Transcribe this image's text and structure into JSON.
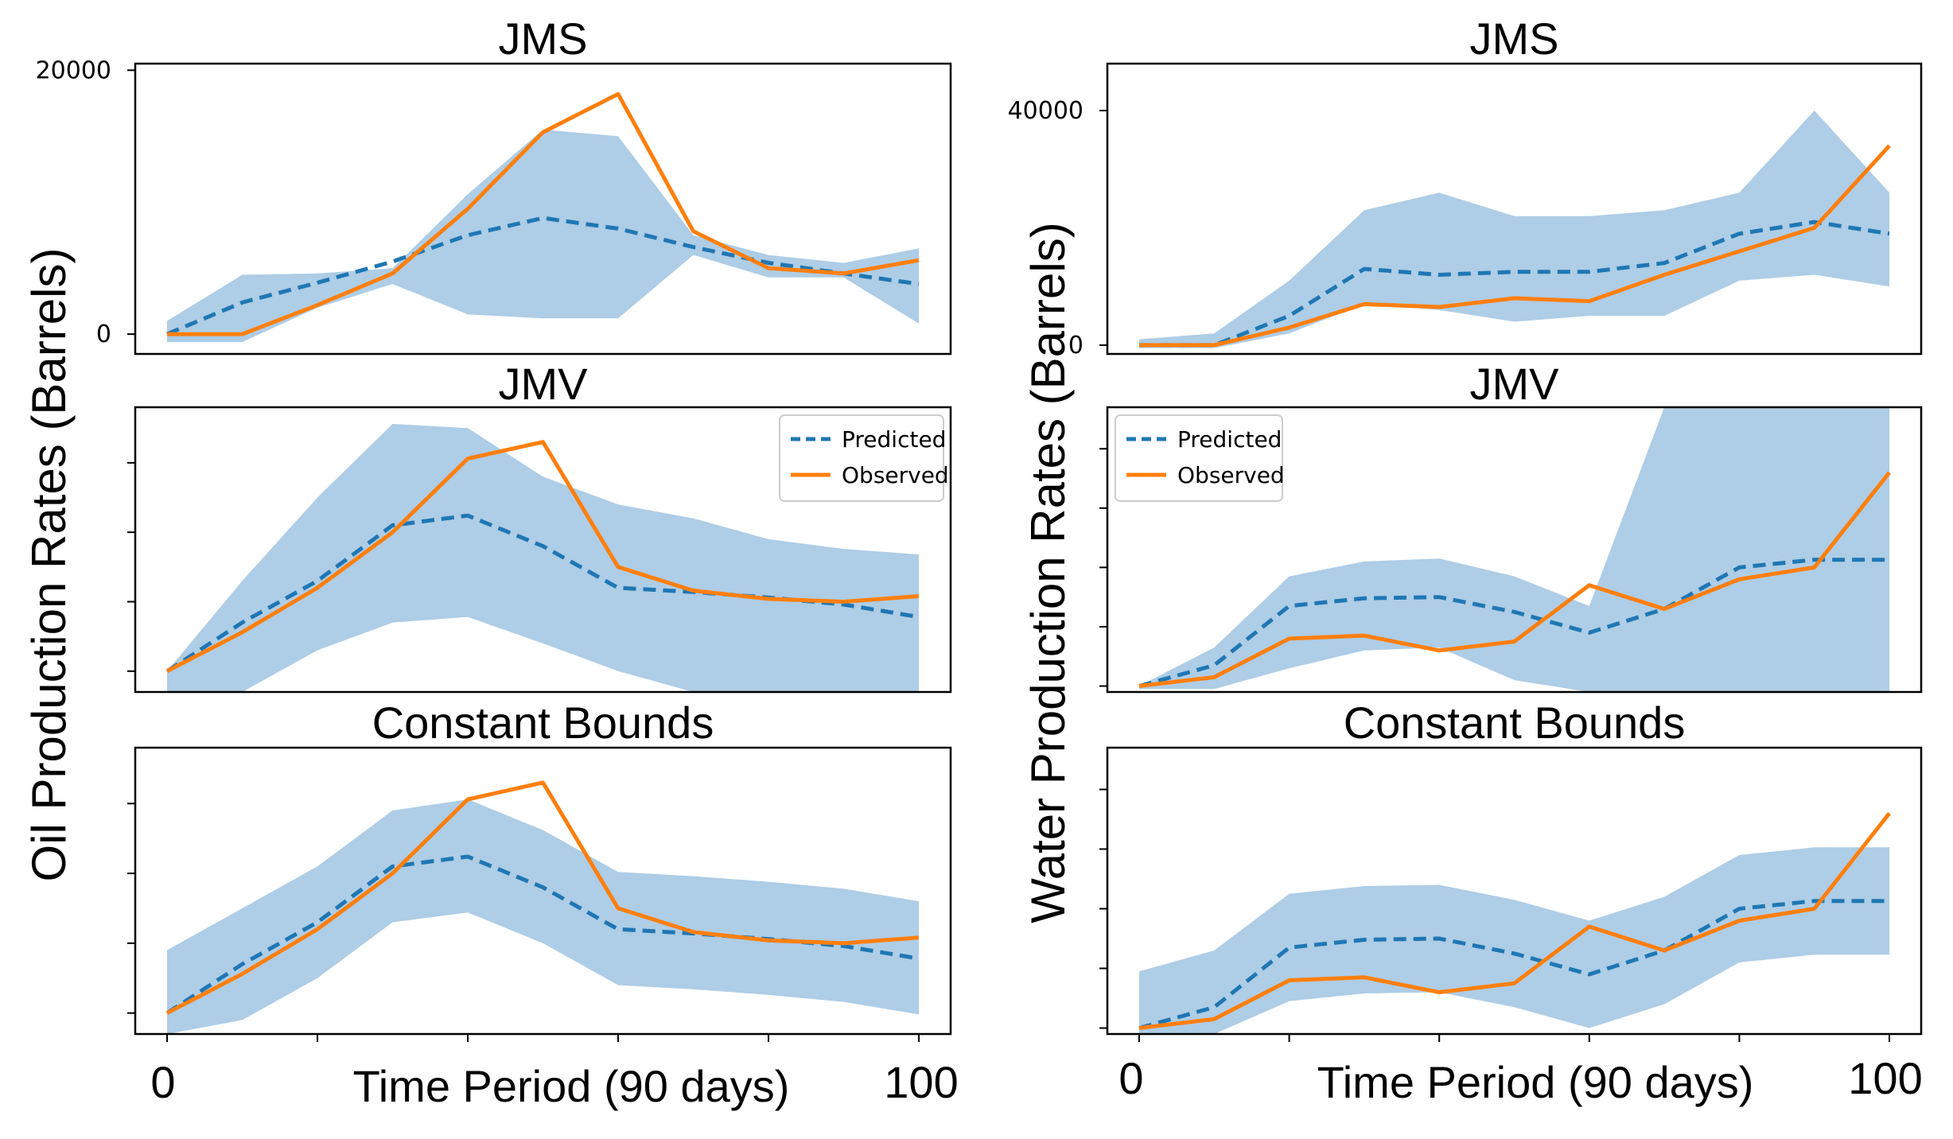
{
  "figure": {
    "left_ylabel": "Oil Production Rates (Barrels)",
    "right_ylabel": "Water Production Rates (Barrels)",
    "xlabel": "Time Period (90 days)",
    "x_first_label": "0",
    "x_last_label": "100",
    "colors": {
      "predicted": "#1f77b4",
      "observed": "#ff7f0e",
      "band": "#aecde6"
    },
    "legend": {
      "predicted": "Predicted",
      "observed": "Observed"
    }
  },
  "chart_data": [
    {
      "type": "line",
      "title": "JMS",
      "column": "left",
      "row": 0,
      "ylim": [
        -1500,
        20500
      ],
      "yticks": [
        0,
        20000
      ],
      "ytick_labels": [
        "0",
        "20000"
      ],
      "x": [
        0,
        10,
        20,
        30,
        40,
        50,
        60,
        70,
        80,
        90,
        100
      ],
      "series": [
        {
          "name": "Predicted",
          "style": "dashed",
          "values": [
            0,
            2400,
            3900,
            5500,
            7500,
            8800,
            8000,
            6600,
            5400,
            4600,
            3800
          ]
        },
        {
          "name": "Observed",
          "style": "solid",
          "values": [
            0,
            0,
            2200,
            4600,
            9500,
            15300,
            18200,
            7800,
            5000,
            4600,
            5600
          ]
        }
      ],
      "band": {
        "upper": [
          1000,
          4500,
          4600,
          5000,
          10600,
          15500,
          15000,
          7500,
          6000,
          5400,
          6500
        ],
        "lower": [
          -600,
          -600,
          2000,
          3800,
          1500,
          1200,
          1200,
          6000,
          4300,
          4300,
          800
        ]
      }
    },
    {
      "type": "line",
      "title": "JMS",
      "column": "right",
      "row": 0,
      "ylim": [
        -1500,
        48000
      ],
      "yticks": [
        0,
        40000
      ],
      "ytick_labels": [
        "0",
        "40000"
      ],
      "x": [
        0,
        10,
        20,
        30,
        40,
        50,
        60,
        70,
        80,
        90,
        100
      ],
      "series": [
        {
          "name": "Predicted",
          "style": "dashed",
          "values": [
            0,
            0,
            5000,
            13000,
            12000,
            12500,
            12500,
            14000,
            19000,
            21000,
            19000
          ]
        },
        {
          "name": "Observed",
          "style": "solid",
          "values": [
            0,
            0,
            3000,
            7000,
            6500,
            8000,
            7500,
            12000,
            16000,
            20000,
            34000
          ]
        }
      ],
      "band": {
        "upper": [
          1000,
          2000,
          11000,
          23000,
          26000,
          22000,
          22000,
          23000,
          26000,
          40000,
          26000
        ],
        "lower": [
          -500,
          -500,
          2000,
          7000,
          6000,
          4000,
          5000,
          5000,
          11000,
          12000,
          10000
        ]
      }
    },
    {
      "type": "line",
      "title": "JMV",
      "column": "left",
      "row": 1,
      "ylim": [
        -1500,
        19000
      ],
      "yticks": [
        0,
        5000,
        10000,
        15000,
        20000
      ],
      "ytick_labels": [],
      "x": [
        0,
        10,
        20,
        30,
        40,
        50,
        60,
        70,
        80,
        90,
        100
      ],
      "series": [
        {
          "name": "Predicted",
          "style": "dashed",
          "values": [
            0,
            3500,
            6500,
            10500,
            11200,
            9000,
            6000,
            5700,
            5300,
            4800,
            3900
          ]
        },
        {
          "name": "Observed",
          "style": "solid",
          "values": [
            0,
            2800,
            6000,
            10000,
            15300,
            16500,
            7500,
            5800,
            5200,
            5000,
            5400
          ]
        }
      ],
      "band": {
        "upper": [
          0,
          6500,
          12500,
          17800,
          17500,
          14000,
          12000,
          11000,
          9500,
          8800,
          8400
        ],
        "lower": [
          -1500,
          -1500,
          1500,
          3500,
          3900,
          2000,
          0,
          -1500,
          -1500,
          -1500,
          -1500
        ]
      }
    },
    {
      "type": "line",
      "title": "JMV",
      "column": "right",
      "row": 1,
      "ylim": [
        -1000,
        47000
      ],
      "yticks": [
        0,
        10000,
        20000,
        30000,
        40000
      ],
      "ytick_labels": [],
      "x": [
        0,
        10,
        20,
        30,
        40,
        50,
        60,
        70,
        80,
        90,
        100
      ],
      "series": [
        {
          "name": "Predicted",
          "style": "dashed",
          "values": [
            0,
            3500,
            13500,
            14800,
            15000,
            12500,
            9000,
            13000,
            20000,
            21300,
            21300
          ]
        },
        {
          "name": "Observed",
          "style": "solid",
          "values": [
            0,
            1500,
            8000,
            8500,
            6000,
            7500,
            17000,
            13000,
            18000,
            20000,
            36000
          ]
        }
      ],
      "band": {
        "upper": [
          0,
          6500,
          18500,
          21000,
          21500,
          18500,
          13500,
          47000,
          47000,
          47000,
          47000
        ],
        "lower": [
          -500,
          -500,
          3000,
          6000,
          6500,
          1000,
          -1000,
          -1000,
          -1000,
          -1000,
          -1000
        ]
      }
    },
    {
      "type": "line",
      "title": "Constant Bounds",
      "column": "left",
      "row": 2,
      "ylim": [
        -1500,
        19000
      ],
      "yticks": [
        0,
        5000,
        10000,
        15000,
        20000
      ],
      "ytick_labels": [],
      "x": [
        0,
        10,
        20,
        30,
        40,
        50,
        60,
        70,
        80,
        90,
        100
      ],
      "series": [
        {
          "name": "Predicted",
          "style": "dashed",
          "values": [
            0,
            3500,
            6500,
            10500,
            11200,
            9000,
            6000,
            5700,
            5300,
            4800,
            3900
          ]
        },
        {
          "name": "Observed",
          "style": "solid",
          "values": [
            0,
            2800,
            6000,
            10000,
            15300,
            16500,
            7500,
            5800,
            5200,
            5000,
            5400
          ]
        }
      ],
      "band": {
        "upper": [
          4500,
          7500,
          10500,
          14500,
          15300,
          13100,
          10100,
          9800,
          9400,
          8900,
          8000
        ],
        "lower": [
          -1500,
          -500,
          2500,
          6500,
          7200,
          5000,
          2000,
          1700,
          1300,
          800,
          -100
        ]
      }
    },
    {
      "type": "line",
      "title": "Constant Bounds",
      "column": "right",
      "row": 2,
      "ylim": [
        -1000,
        47000
      ],
      "yticks": [
        0,
        10000,
        20000,
        30000,
        40000
      ],
      "ytick_labels": [],
      "x": [
        0,
        10,
        20,
        30,
        40,
        50,
        60,
        70,
        80,
        90,
        100
      ],
      "series": [
        {
          "name": "Predicted",
          "style": "dashed",
          "values": [
            0,
            3500,
            13500,
            14800,
            15000,
            12500,
            9000,
            13000,
            20000,
            21300,
            21300
          ]
        },
        {
          "name": "Observed",
          "style": "solid",
          "values": [
            0,
            1500,
            8000,
            8500,
            6000,
            7500,
            17000,
            13000,
            18000,
            20000,
            36000
          ]
        }
      ],
      "band": {
        "upper": [
          9500,
          13000,
          22500,
          23800,
          24000,
          21500,
          18000,
          22000,
          29000,
          30300,
          30300
        ],
        "lower": [
          -1000,
          -1000,
          4500,
          5800,
          6000,
          3500,
          0,
          4000,
          11000,
          12300,
          12300
        ]
      }
    }
  ]
}
